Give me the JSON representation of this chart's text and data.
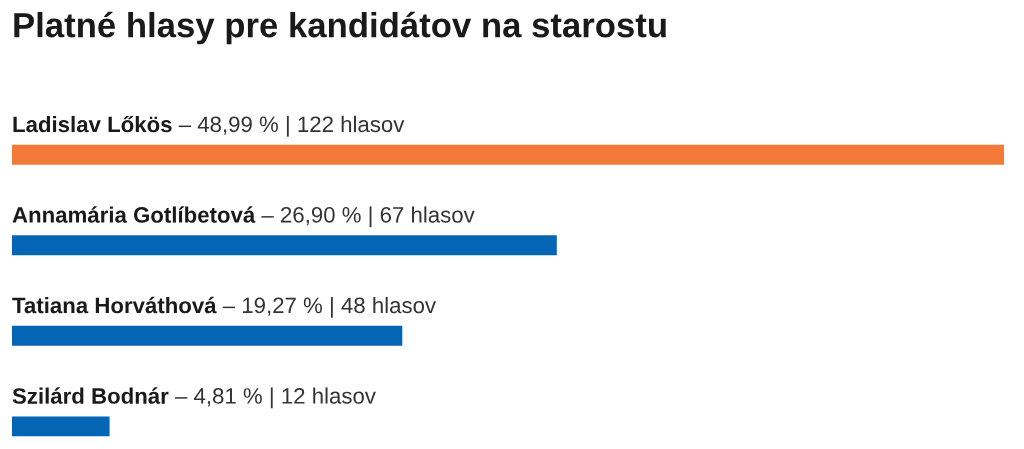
{
  "chart_data": {
    "type": "bar",
    "orientation": "horizontal",
    "title": "Platné hlasy pre kandidátov na starostu",
    "categories": [
      "Ladislav Lőkös",
      "Annamária Gotlíbetová",
      "Tatiana Horváthová",
      "Szilárd Bodnár"
    ],
    "values": [
      122,
      67,
      48,
      12
    ],
    "value_labels": [
      "– 48,99 % | 122 hlasov",
      "– 26,90 % | 67 hlasov",
      "– 19,27 % | 48 hlasov",
      "– 4,81 % | 12 hlasov"
    ],
    "colors": [
      "#f47a3a",
      "#0565b5",
      "#0565b5",
      "#0565b5"
    ]
  }
}
